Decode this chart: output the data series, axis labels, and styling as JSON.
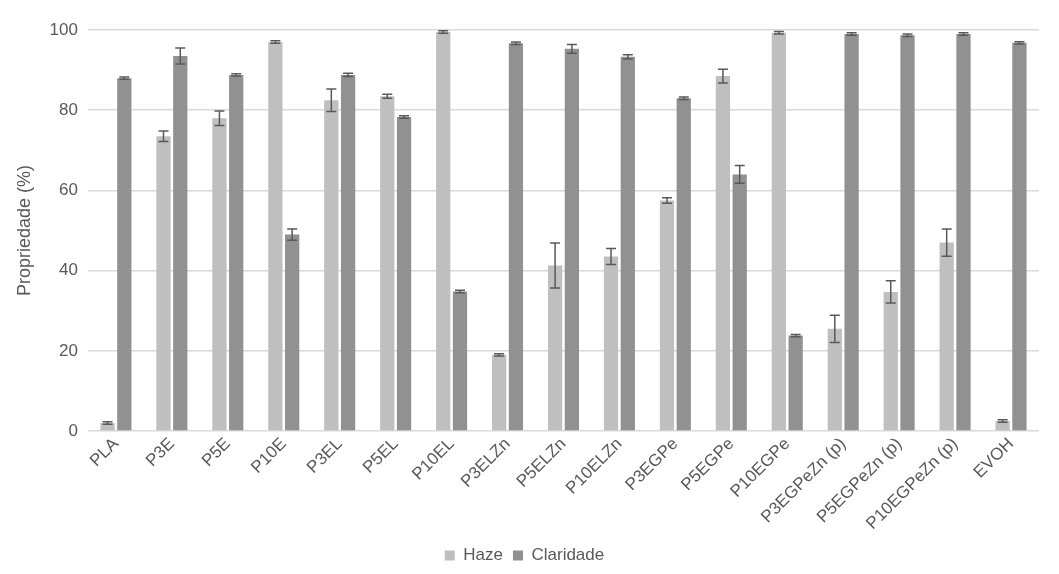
{
  "chart_data": {
    "type": "bar",
    "ylabel": "Propriedade (%)",
    "categories": [
      "PLA",
      "P3E",
      "P5E",
      "P10E",
      "P3EL",
      "P5EL",
      "P10EL",
      "P3ELZn",
      "P5ELZn",
      "P10ELZn",
      "P3EGPe",
      "P5EGPe",
      "P10EGPe",
      "P3EGPeZn (p)",
      "P5EGPeZn (p)",
      "P10EGPeZn (p)",
      "EVOH"
    ],
    "series": [
      {
        "name": "Haze",
        "color": "#bfbfbf",
        "values": [
          2,
          73.5,
          78,
          97,
          82.5,
          83.5,
          99.5,
          19,
          41.3,
          43.5,
          57.5,
          88.5,
          99.3,
          25.5,
          34.7,
          47,
          2.5
        ],
        "errors": [
          0.3,
          1.3,
          1.8,
          0.3,
          2.8,
          0.5,
          0.3,
          0.3,
          5.6,
          2,
          0.7,
          1.7,
          0.3,
          3.4,
          2.8,
          3.4,
          0.3
        ]
      },
      {
        "name": "Claridade",
        "color": "#919191",
        "values": [
          88,
          93.5,
          88.8,
          49,
          88.8,
          78.3,
          34.8,
          96.7,
          95.3,
          93.3,
          83,
          64,
          23.8,
          99,
          98.7,
          99,
          96.8
        ],
        "errors": [
          0.3,
          2,
          0.3,
          1.4,
          0.4,
          0.3,
          0.3,
          0.3,
          1.1,
          0.5,
          0.3,
          2.2,
          0.3,
          0.3,
          0.3,
          0.3,
          0.3
        ]
      }
    ],
    "ylim": [
      0,
      100
    ],
    "yticks": [
      0,
      20,
      40,
      60,
      80,
      100
    ],
    "grid": "y",
    "legend": "bottom"
  }
}
